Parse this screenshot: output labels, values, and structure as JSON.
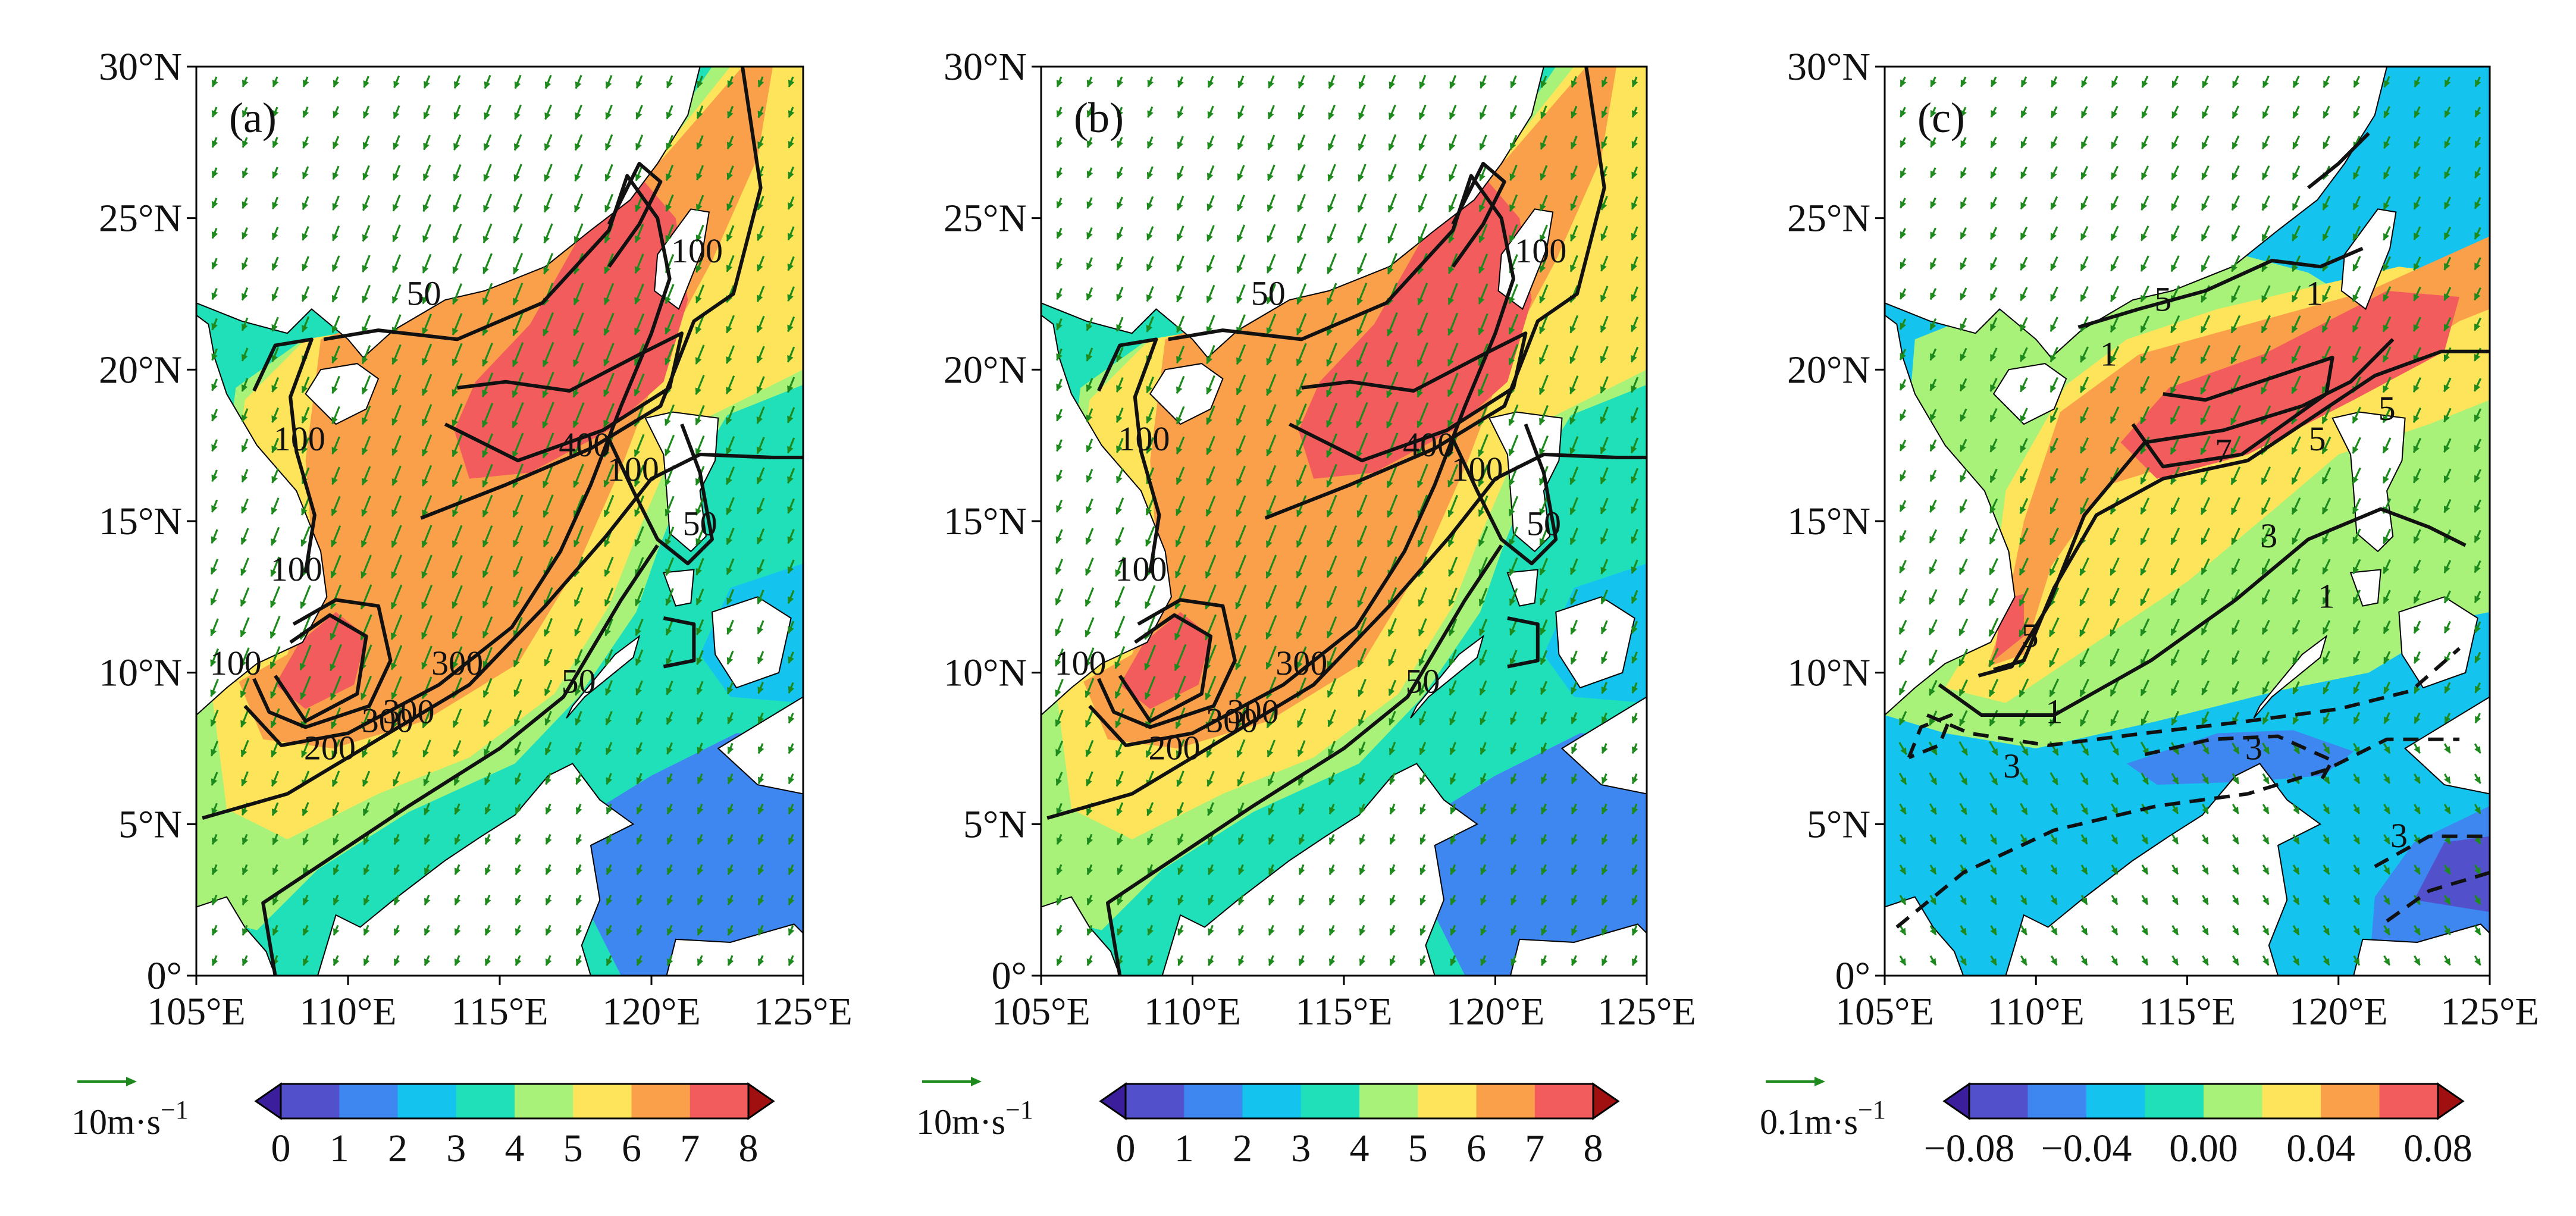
{
  "colors": {
    "scale_ab": [
      "#5350cc",
      "#3e86f0",
      "#14c4ef",
      "#1fe0b8",
      "#a8f27a",
      "#fde45a",
      "#fba04a",
      "#f25c5c"
    ],
    "scale_ab_low": "#3a1e9c",
    "scale_ab_high": "#a01010",
    "scale_c": [
      "#5350cc",
      "#3e86f0",
      "#14c4ef",
      "#1fe0b8",
      "#a8f27a",
      "#fde45a",
      "#fba04a",
      "#f25c5c"
    ],
    "vector": "#1e8a1e",
    "contour": "#111111",
    "land": "#ffffff"
  },
  "chart_data": [
    {
      "type": "map",
      "panel_label": "(a)",
      "lon_range": [
        105,
        125
      ],
      "lat_range": [
        0,
        30
      ],
      "x_ticks": [
        "105°E",
        "110°E",
        "115°E",
        "120°E",
        "125°E"
      ],
      "y_ticks": [
        "0°",
        "5°N",
        "10°N",
        "15°N",
        "20°N",
        "25°N",
        "30°N"
      ],
      "contour_labels": [
        "50",
        "100",
        "100",
        "100",
        "200",
        "300",
        "300",
        "400",
        "50",
        "50",
        "100",
        "300",
        "100"
      ],
      "colorbar": {
        "ticks": [
          "0",
          "1",
          "2",
          "3",
          "4",
          "5",
          "6",
          "7",
          "8"
        ],
        "unit": "10m·s",
        "unit_exp": "−1",
        "range": [
          0,
          8
        ]
      }
    },
    {
      "type": "map",
      "panel_label": "(b)",
      "lon_range": [
        105,
        125
      ],
      "lat_range": [
        0,
        30
      ],
      "x_ticks": [
        "105°E",
        "110°E",
        "115°E",
        "120°E",
        "125°E"
      ],
      "y_ticks": [
        "0°",
        "5°N",
        "10°N",
        "15°N",
        "20°N",
        "25°N",
        "30°N"
      ],
      "contour_labels": [
        "50",
        "100",
        "100",
        "100",
        "200",
        "300",
        "300",
        "400",
        "50",
        "50",
        "100",
        "300",
        "100"
      ],
      "colorbar": {
        "ticks": [
          "0",
          "1",
          "2",
          "3",
          "4",
          "5",
          "6",
          "7",
          "8"
        ],
        "unit": "10m·s",
        "unit_exp": "−1",
        "range": [
          0,
          8
        ]
      }
    },
    {
      "type": "map",
      "panel_label": "(c)",
      "lon_range": [
        105,
        125
      ],
      "lat_range": [
        0,
        30
      ],
      "x_ticks": [
        "105°E",
        "110°E",
        "115°E",
        "120°E",
        "125°E"
      ],
      "y_ticks": [
        "0°",
        "5°N",
        "10°N",
        "15°N",
        "20°N",
        "25°N",
        "30°N"
      ],
      "contour_labels": [
        "5",
        "1",
        "7",
        "5",
        "3",
        "1",
        "5",
        "1",
        "3",
        "3",
        "5",
        "1",
        "3"
      ],
      "colorbar": {
        "ticks": [
          "−0.08",
          "−0.04",
          "0.00",
          "0.04",
          "0.08"
        ],
        "unit": "0.1m·s",
        "unit_exp": "−1",
        "range": [
          -0.08,
          0.08
        ]
      }
    }
  ]
}
